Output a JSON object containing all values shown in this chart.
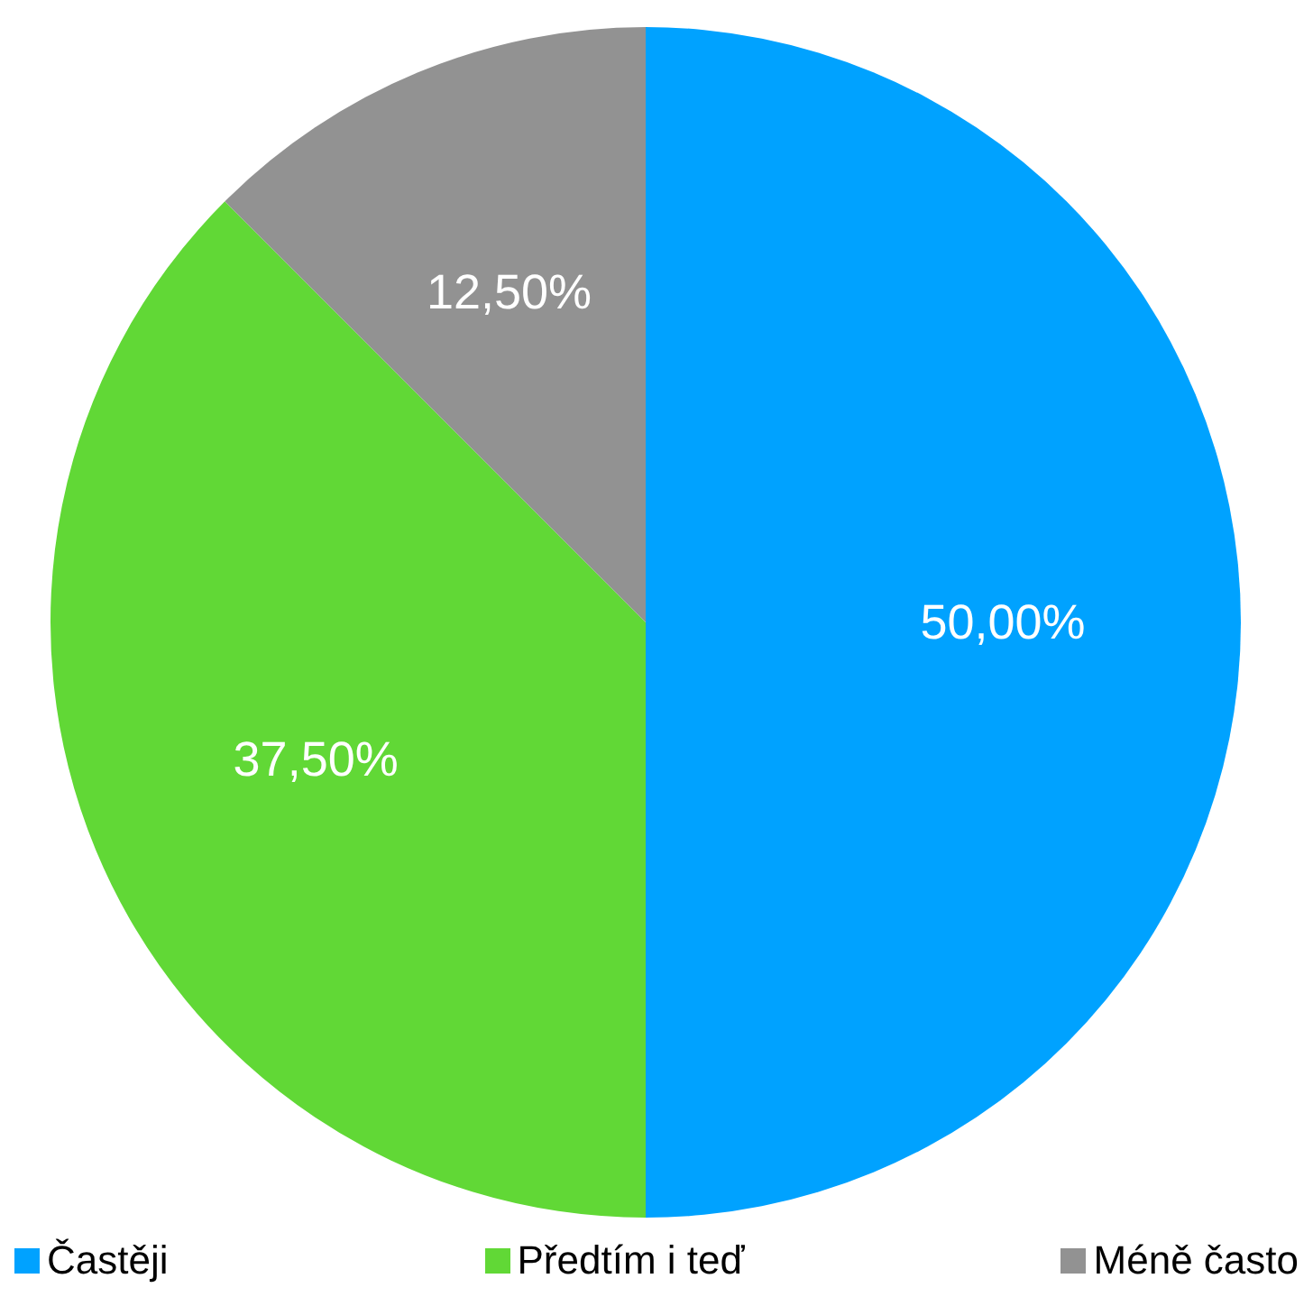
{
  "chart_data": {
    "type": "pie",
    "categories": [
      "Častěji",
      "Předtím i teď",
      "Méně často"
    ],
    "values": [
      50,
      37.5,
      12.5
    ],
    "colors": [
      "#00a2ff",
      "#61d836",
      "#929292"
    ],
    "value_labels": [
      "50,00%",
      "37,50%",
      "12,50%"
    ],
    "legend": "bottom"
  }
}
